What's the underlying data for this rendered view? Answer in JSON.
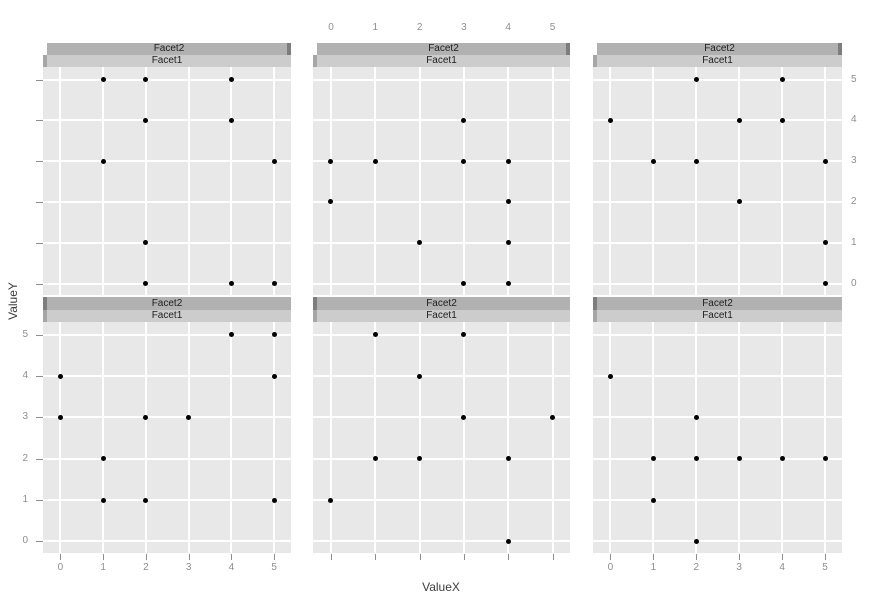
{
  "figure": {
    "x_axis_title": "ValueX",
    "y_axis_title": "ValueY"
  },
  "colors": {
    "panel_bg": "#e8e8e8",
    "gridline": "#ffffff",
    "strip_outer_bg": "#b1b1b1",
    "strip_inner_bg": "#cccccc",
    "strip_cap_dark": "#7d7d7d",
    "strip_cap_medium": "#a6a6a6",
    "tick_label": "#8e8e8e",
    "axis_title": "#3d3d3d",
    "point": "#000000",
    "background": "#ffffff"
  },
  "chart_data": {
    "type": "scatter",
    "title": "",
    "xlabel": "ValueX",
    "ylabel": "ValueY",
    "xlim": [
      0,
      5
    ],
    "ylim": [
      0,
      5
    ],
    "x_ticks": [
      "0",
      "1",
      "2",
      "3",
      "4",
      "5"
    ],
    "y_ticks": [
      "0",
      "1",
      "2",
      "3",
      "4",
      "5"
    ],
    "grid": true,
    "legend": false,
    "facet_rows": 2,
    "facet_cols": 3,
    "facets": [
      {
        "row": 0,
        "col": 0,
        "strip_outer": "Facet2",
        "strip_inner": "Facet1",
        "points": [
          [
            1,
            5
          ],
          [
            2,
            5
          ],
          [
            4,
            5
          ],
          [
            2,
            4
          ],
          [
            4,
            4
          ],
          [
            1,
            3
          ],
          [
            5,
            3
          ],
          [
            2,
            1
          ],
          [
            2,
            0
          ],
          [
            4,
            0
          ],
          [
            5,
            0
          ]
        ],
        "axis": {
          "top_labels": false,
          "right_labels": false,
          "left_labels": false,
          "bottom_labels": false,
          "left_ticks": true,
          "bottom_ticks": false
        }
      },
      {
        "row": 0,
        "col": 1,
        "strip_outer": "Facet2",
        "strip_inner": "Facet1",
        "points": [
          [
            3,
            4
          ],
          [
            0,
            3
          ],
          [
            1,
            3
          ],
          [
            3,
            3
          ],
          [
            4,
            3
          ],
          [
            0,
            2
          ],
          [
            4,
            2
          ],
          [
            2,
            1
          ],
          [
            4,
            1
          ],
          [
            3,
            0
          ],
          [
            4,
            0
          ]
        ],
        "axis": {
          "top_labels": true,
          "right_labels": false,
          "left_labels": false,
          "bottom_labels": false,
          "left_ticks": false,
          "bottom_ticks": false
        }
      },
      {
        "row": 0,
        "col": 2,
        "strip_outer": "Facet2",
        "strip_inner": "Facet1",
        "points": [
          [
            2,
            5
          ],
          [
            4,
            5
          ],
          [
            0,
            4
          ],
          [
            3,
            4
          ],
          [
            4,
            4
          ],
          [
            1,
            3
          ],
          [
            2,
            3
          ],
          [
            5,
            3
          ],
          [
            3,
            2
          ],
          [
            5,
            1
          ],
          [
            5,
            0
          ]
        ],
        "axis": {
          "top_labels": false,
          "right_labels": true,
          "left_labels": false,
          "bottom_labels": false,
          "left_ticks": false,
          "bottom_ticks": false
        }
      },
      {
        "row": 1,
        "col": 0,
        "strip_outer": "Facet2",
        "strip_inner": "Facet1",
        "points": [
          [
            4,
            5
          ],
          [
            5,
            5
          ],
          [
            0,
            4
          ],
          [
            5,
            4
          ],
          [
            0,
            3
          ],
          [
            2,
            3
          ],
          [
            3,
            3
          ],
          [
            1,
            2
          ],
          [
            1,
            1
          ],
          [
            2,
            1
          ],
          [
            5,
            1
          ]
        ],
        "axis": {
          "top_labels": false,
          "right_labels": false,
          "left_labels": true,
          "bottom_labels": true,
          "left_ticks": true,
          "bottom_ticks": true
        }
      },
      {
        "row": 1,
        "col": 1,
        "strip_outer": "Facet2",
        "strip_inner": "Facet1",
        "points": [
          [
            1,
            5
          ],
          [
            3,
            5
          ],
          [
            2,
            4
          ],
          [
            3,
            3
          ],
          [
            5,
            3
          ],
          [
            1,
            2
          ],
          [
            2,
            2
          ],
          [
            4,
            2
          ],
          [
            0,
            1
          ],
          [
            4,
            0
          ]
        ],
        "axis": {
          "top_labels": false,
          "right_labels": false,
          "left_labels": false,
          "bottom_labels": false,
          "left_ticks": false,
          "bottom_ticks": true
        }
      },
      {
        "row": 1,
        "col": 2,
        "strip_outer": "Facet2",
        "strip_inner": "Facet1",
        "points": [
          [
            0,
            4
          ],
          [
            2,
            3
          ],
          [
            1,
            2
          ],
          [
            2,
            2
          ],
          [
            3,
            2
          ],
          [
            4,
            2
          ],
          [
            5,
            2
          ],
          [
            1,
            1
          ],
          [
            2,
            0
          ]
        ],
        "axis": {
          "top_labels": false,
          "right_labels": false,
          "left_labels": false,
          "bottom_labels": true,
          "left_ticks": false,
          "bottom_ticks": true
        }
      }
    ]
  }
}
